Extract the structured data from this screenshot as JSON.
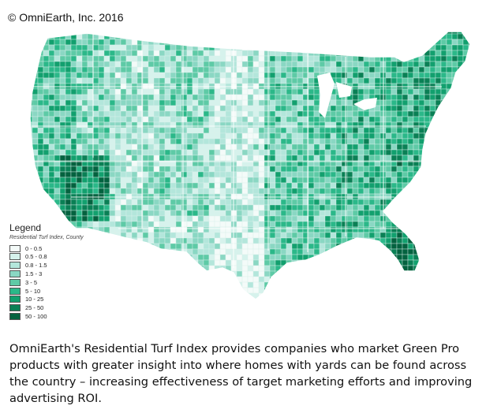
{
  "copyright": "© OmniEarth, Inc. 2016",
  "legend": {
    "title": "Legend",
    "subtitle": "Residential Turf Index, County",
    "items": [
      {
        "label": "0 - 0.5",
        "color": "#f4fbf9"
      },
      {
        "label": "0.5 - 0.8",
        "color": "#d6f2ec"
      },
      {
        "label": "0.8 - 1.5",
        "color": "#b3e6db"
      },
      {
        "label": "1.5 - 3",
        "color": "#8ad7c3"
      },
      {
        "label": "3 - 5",
        "color": "#5ecaa6"
      },
      {
        "label": "5 - 10",
        "color": "#2bb889"
      },
      {
        "label": "10 - 25",
        "color": "#12a06e"
      },
      {
        "label": "25 - 50",
        "color": "#0a8055"
      },
      {
        "label": "50 - 100",
        "color": "#04623f"
      }
    ]
  },
  "caption": "OmniEarth's Residential Turf Index provides companies who market Green Pro products with greater insight into where homes with yards can be found across the country – increasing effectiveness of target marketing efforts and improving advertising ROI.",
  "colors": {
    "state_borders": "#ffffff",
    "county_borders": "#d9f0ea"
  }
}
